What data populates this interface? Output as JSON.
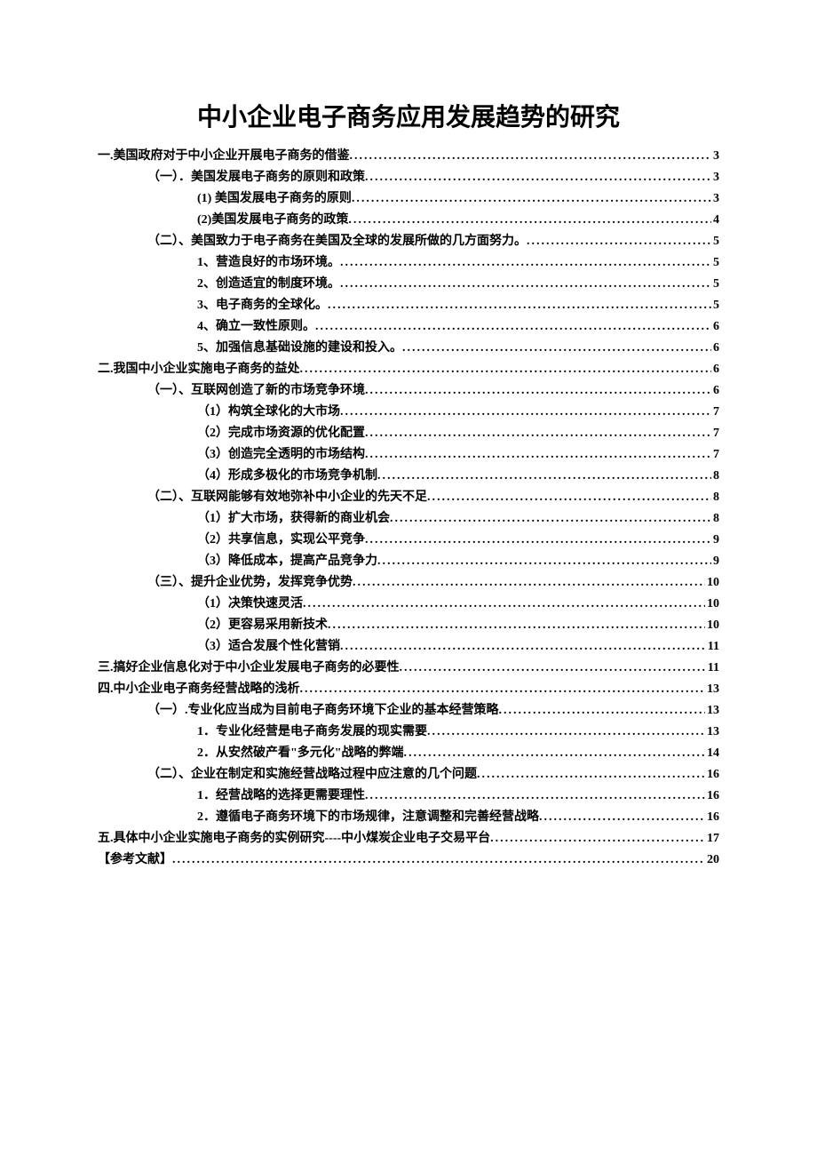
{
  "title": "中小企业电子商务应用发展趋势的研究",
  "toc": [
    {
      "text": "一.美国政府对于中小企业开展电子商务的借鉴",
      "page": "3",
      "indent": 0
    },
    {
      "text": "（一）．美国发展电子商务的原则和政策",
      "page": "3",
      "indent": 1
    },
    {
      "text": "(1) 美国发展电子商务的原则",
      "page": "3",
      "indent": 2
    },
    {
      "text": "(2)美国发展电子商务的政策",
      "page": "4",
      "indent": 2
    },
    {
      "text": "（二）、美国致力于电子商务在美国及全球的发展所做的几方面努力。",
      "page": "5",
      "indent": 1
    },
    {
      "text": "1、营造良好的市场环境。",
      "page": "5",
      "indent": 2
    },
    {
      "text": "2、创造适宜的制度环境。",
      "page": "5",
      "indent": 2
    },
    {
      "text": "3、电子商务的全球化。",
      "page": "5",
      "indent": 2
    },
    {
      "text": "4、确立一致性原则。",
      "page": "6",
      "indent": 2
    },
    {
      "text": "5、加强信息基础设施的建设和投入。",
      "page": "6",
      "indent": 2
    },
    {
      "text": "二.我国中小企业实施电子商务的益处",
      "page": "6",
      "indent": 0
    },
    {
      "text": "（一）、互联网创造了新的市场竞争环境",
      "page": "6",
      "indent": 1
    },
    {
      "text": "（1）构筑全球化的大市场",
      "page": "7",
      "indent": 2
    },
    {
      "text": "（2）完成市场资源的优化配置",
      "page": "7",
      "indent": 2
    },
    {
      "text": "（3）创造完全透明的市场结构",
      "page": "7",
      "indent": 2
    },
    {
      "text": "（4）形成多极化的市场竞争机制",
      "page": "8",
      "indent": 2
    },
    {
      "text": "（二）、互联网能够有效地弥补中小企业的先天不足",
      "page": "8",
      "indent": 1
    },
    {
      "text": "（1）扩大市场，获得新的商业机会",
      "page": "8",
      "indent": 2
    },
    {
      "text": "（2）共享信息，实现公平竞争",
      "page": "9",
      "indent": 2
    },
    {
      "text": "（3）降低成本，提高产品竞争力",
      "page": "9",
      "indent": 2
    },
    {
      "text": "（三）、提升企业优势，发挥竞争优势",
      "page": "10",
      "indent": 1
    },
    {
      "text": "（1）决策快速灵活",
      "page": "10",
      "indent": 2
    },
    {
      "text": "（2）更容易采用新技术",
      "page": "10",
      "indent": 2
    },
    {
      "text": "（3）适合发展个性化营销",
      "page": "11",
      "indent": 2
    },
    {
      "text": "三.搞好企业信息化对于中小企业发展电子商务的必要性",
      "page": "11",
      "indent": 0
    },
    {
      "text": "四.中小企业电子商务经营战略的浅析",
      "page": "13",
      "indent": 0
    },
    {
      "text": "（一）.专业化应当成为目前电子商务环境下企业的基本经营策略",
      "page": "13",
      "indent": 1
    },
    {
      "text": "1．专业化经营是电子商务发展的现实需要",
      "page": "13",
      "indent": 2
    },
    {
      "text": "2．从安然破产看\"多元化\"战略的弊端",
      "page": "14",
      "indent": 2
    },
    {
      "text": "（二）、企业在制定和实施经营战略过程中应注意的几个问题",
      "page": "16",
      "indent": 1
    },
    {
      "text": "1．经营战略的选择更需要理性",
      "page": "16",
      "indent": 2
    },
    {
      "text": "2．遵循电子商务环境下的市场规律，注意调整和完善经营战略",
      "page": "16",
      "indent": 2
    },
    {
      "text": "五.具体中小企业实施电子商务的实例研究----中小煤炭企业电子交易平台",
      "page": "17",
      "indent": 0
    },
    {
      "text": "【参考文献】",
      "page": "20",
      "indent": 0
    }
  ]
}
